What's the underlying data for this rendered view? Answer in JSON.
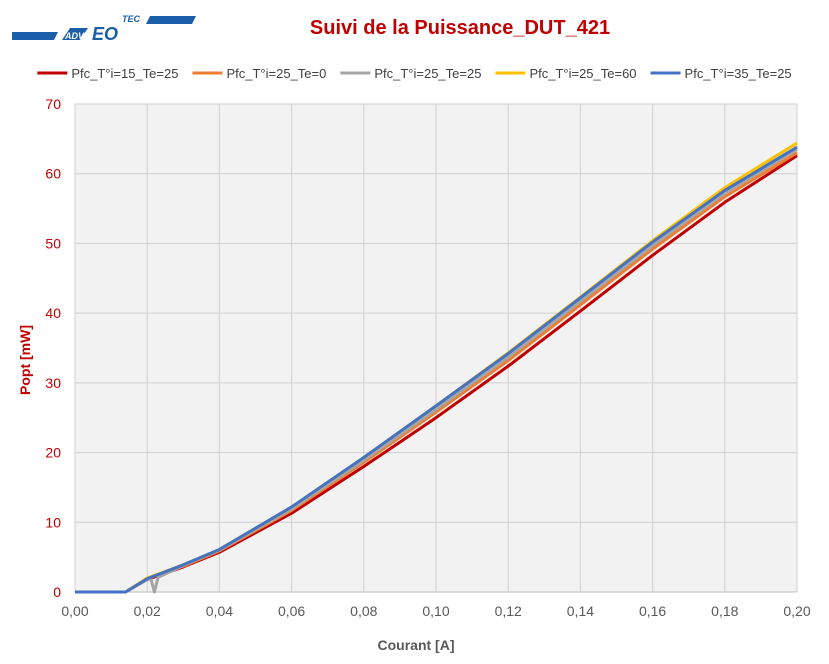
{
  "logo_text": "ADVEOTEC",
  "chart_data": {
    "type": "line",
    "title": "Suivi de la Puissance_DUT_421",
    "xlabel": "Courant [A]",
    "ylabel": "Popt  [mW]",
    "xlim": [
      0,
      0.2
    ],
    "ylim": [
      0,
      70
    ],
    "xticks": [
      0,
      0.02,
      0.04,
      0.06,
      0.08,
      0.1,
      0.12,
      0.14,
      0.16,
      0.18,
      0.2
    ],
    "xtick_labels": [
      "0,00",
      "0,02",
      "0,04",
      "0,06",
      "0,08",
      "0,10",
      "0,12",
      "0,14",
      "0,16",
      "0,18",
      "0,20"
    ],
    "yticks": [
      0,
      10,
      20,
      30,
      40,
      50,
      60,
      70
    ],
    "ytick_labels": [
      "0",
      "10",
      "20",
      "30",
      "40",
      "50",
      "60",
      "70"
    ],
    "grid": true,
    "legend_position": "top",
    "series": [
      {
        "name": "Pfc_T°i=15_Te=25",
        "color": "#C00000",
        "x": [
          0,
          0.014,
          0.02,
          0.03,
          0.04,
          0.06,
          0.08,
          0.1,
          0.12,
          0.14,
          0.16,
          0.18,
          0.2
        ],
        "y": [
          0,
          0,
          1.8,
          3.6,
          5.7,
          11.3,
          18,
          25,
          32.4,
          40.3,
          48.3,
          55.9,
          62.6
        ]
      },
      {
        "name": "Pfc_T°i=25_Te=0",
        "color": "#ED7D31",
        "x": [
          0,
          0.014,
          0.02,
          0.03,
          0.04,
          0.06,
          0.08,
          0.1,
          0.12,
          0.14,
          0.16,
          0.18,
          0.2
        ],
        "y": [
          0,
          0,
          1.9,
          3.7,
          5.9,
          11.7,
          18.6,
          25.8,
          33.2,
          41.2,
          49.2,
          56.7,
          63
        ]
      },
      {
        "name": "Pfc_T°i=25_Te=25",
        "color": "#A5A5A5",
        "x": [
          0,
          0.014,
          0.02,
          0.021,
          0.022,
          0.023,
          0.03,
          0.04,
          0.06,
          0.08,
          0.1,
          0.12,
          0.14,
          0.16,
          0.18,
          0.2
        ],
        "y": [
          0,
          0,
          1.8,
          1.9,
          0,
          2.1,
          3.8,
          6,
          11.9,
          18.9,
          26.2,
          33.7,
          41.7,
          49.7,
          57.2,
          63.5
        ]
      },
      {
        "name": "Pfc_T°i=25_Te=60",
        "color": "#FFC000",
        "x": [
          0,
          0.014,
          0.02,
          0.03,
          0.04,
          0.06,
          0.08,
          0.1,
          0.12,
          0.14,
          0.16,
          0.18,
          0.2
        ],
        "y": [
          0,
          0,
          2,
          3.9,
          6.1,
          12.2,
          19.3,
          26.7,
          34.3,
          42.3,
          50.4,
          58,
          64.4
        ]
      },
      {
        "name": "Pfc_T°i=35_Te=25",
        "color": "#4472C4",
        "x": [
          0,
          0.014,
          0.02,
          0.03,
          0.04,
          0.06,
          0.08,
          0.1,
          0.12,
          0.14,
          0.16,
          0.18,
          0.2
        ],
        "y": [
          0,
          0,
          1.9,
          3.9,
          6.1,
          12.2,
          19.3,
          26.7,
          34.2,
          42.2,
          50.2,
          57.6,
          63.8
        ]
      }
    ]
  }
}
